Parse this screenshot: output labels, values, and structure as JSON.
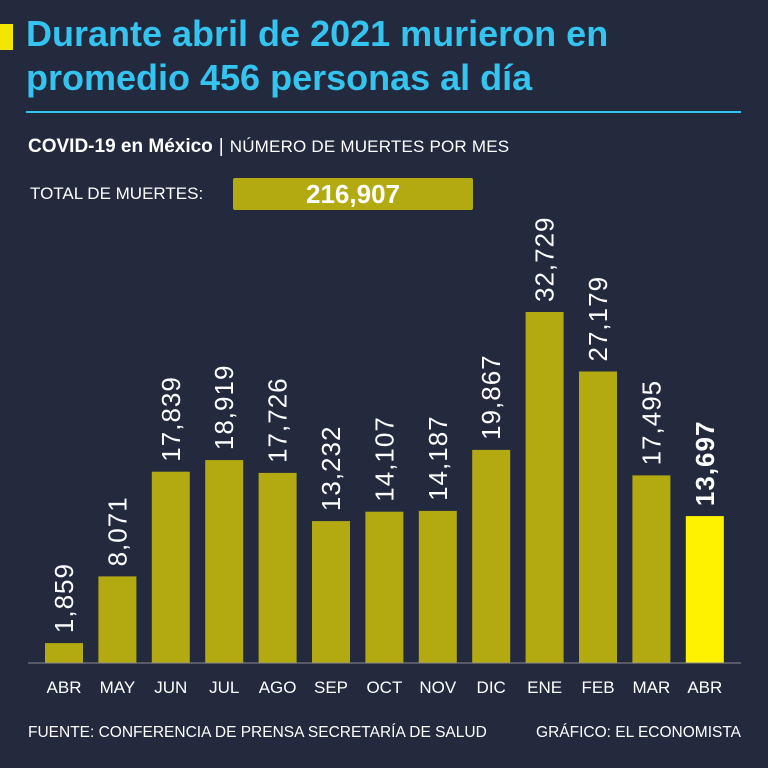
{
  "header": {
    "title": "Durante abril de 2021 murieron en promedio 456 personas al día",
    "subtitle_bold": "COVID-19 en México",
    "subtitle_sep": "|",
    "subtitle_light": "NÚMERO DE MUERTES POR MES"
  },
  "total": {
    "label": "TOTAL DE MUERTES:",
    "value": "216,907"
  },
  "colors": {
    "background": "#232a3e",
    "title": "#35c4f0",
    "bar": "#b3aa12",
    "bar_highlight": "#fff200",
    "text": "#ffffff"
  },
  "chart_data": {
    "type": "bar",
    "title": "NÚMERO DE MUERTES POR MES",
    "xlabel": "",
    "ylabel": "",
    "ylim": [
      0,
      40000
    ],
    "grid": false,
    "categories": [
      "ABR",
      "MAY",
      "JUN",
      "JUL",
      "AGO",
      "SEP",
      "OCT",
      "NOV",
      "DIC",
      "ENE",
      "FEB",
      "MAR",
      "ABR"
    ],
    "values": [
      1859,
      8071,
      17839,
      18919,
      17726,
      13232,
      14107,
      14187,
      19867,
      32729,
      27179,
      17495,
      13697
    ],
    "labels": [
      "1,859",
      "8,071",
      "17,839",
      "18,919",
      "17,726",
      "13,232",
      "14,107",
      "14,187",
      "19,867",
      "32,729",
      "27,179",
      "17,495",
      "13,697"
    ],
    "highlight_index": 12
  },
  "footer": {
    "source": "FUENTE: CONFERENCIA DE PRENSA SECRETARÍA DE SALUD",
    "credit": "GRÁFICO: EL ECONOMISTA"
  }
}
